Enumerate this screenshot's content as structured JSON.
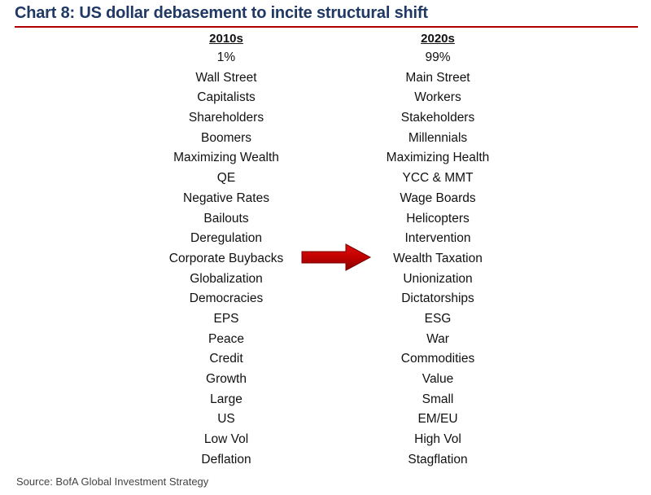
{
  "title": "Chart 8: US dollar debasement to incite structural shift",
  "left_column": {
    "header": "2010s",
    "items": [
      "1%",
      "Wall Street",
      "Capitalists",
      "Shareholders",
      "Boomers",
      "Maximizing Wealth",
      "QE",
      "Negative Rates",
      "Bailouts",
      "Deregulation",
      "Corporate Buybacks",
      "Globalization",
      "Democracies",
      "EPS",
      "Peace",
      "Credit",
      "Growth",
      "Large",
      "US",
      "Low Vol",
      "Deflation"
    ]
  },
  "right_column": {
    "header": "2020s",
    "items": [
      "99%",
      "Main Street",
      "Workers",
      "Stakeholders",
      "Millennials",
      "Maximizing Health",
      "YCC & MMT",
      "Wage Boards",
      "Helicopters",
      "Intervention",
      "Wealth Taxation",
      "Unionization",
      "Dictatorships",
      "ESG",
      "War",
      "Commodities",
      "Value",
      "Small",
      "EM/EU",
      "High Vol",
      "Stagflation"
    ]
  },
  "source": "Source: BofA Global Investment Strategy",
  "colors": {
    "title": "#1f3864",
    "rule": "#b00000",
    "arrow": "#c00000"
  },
  "icons": {
    "arrow": "right-arrow-icon"
  }
}
